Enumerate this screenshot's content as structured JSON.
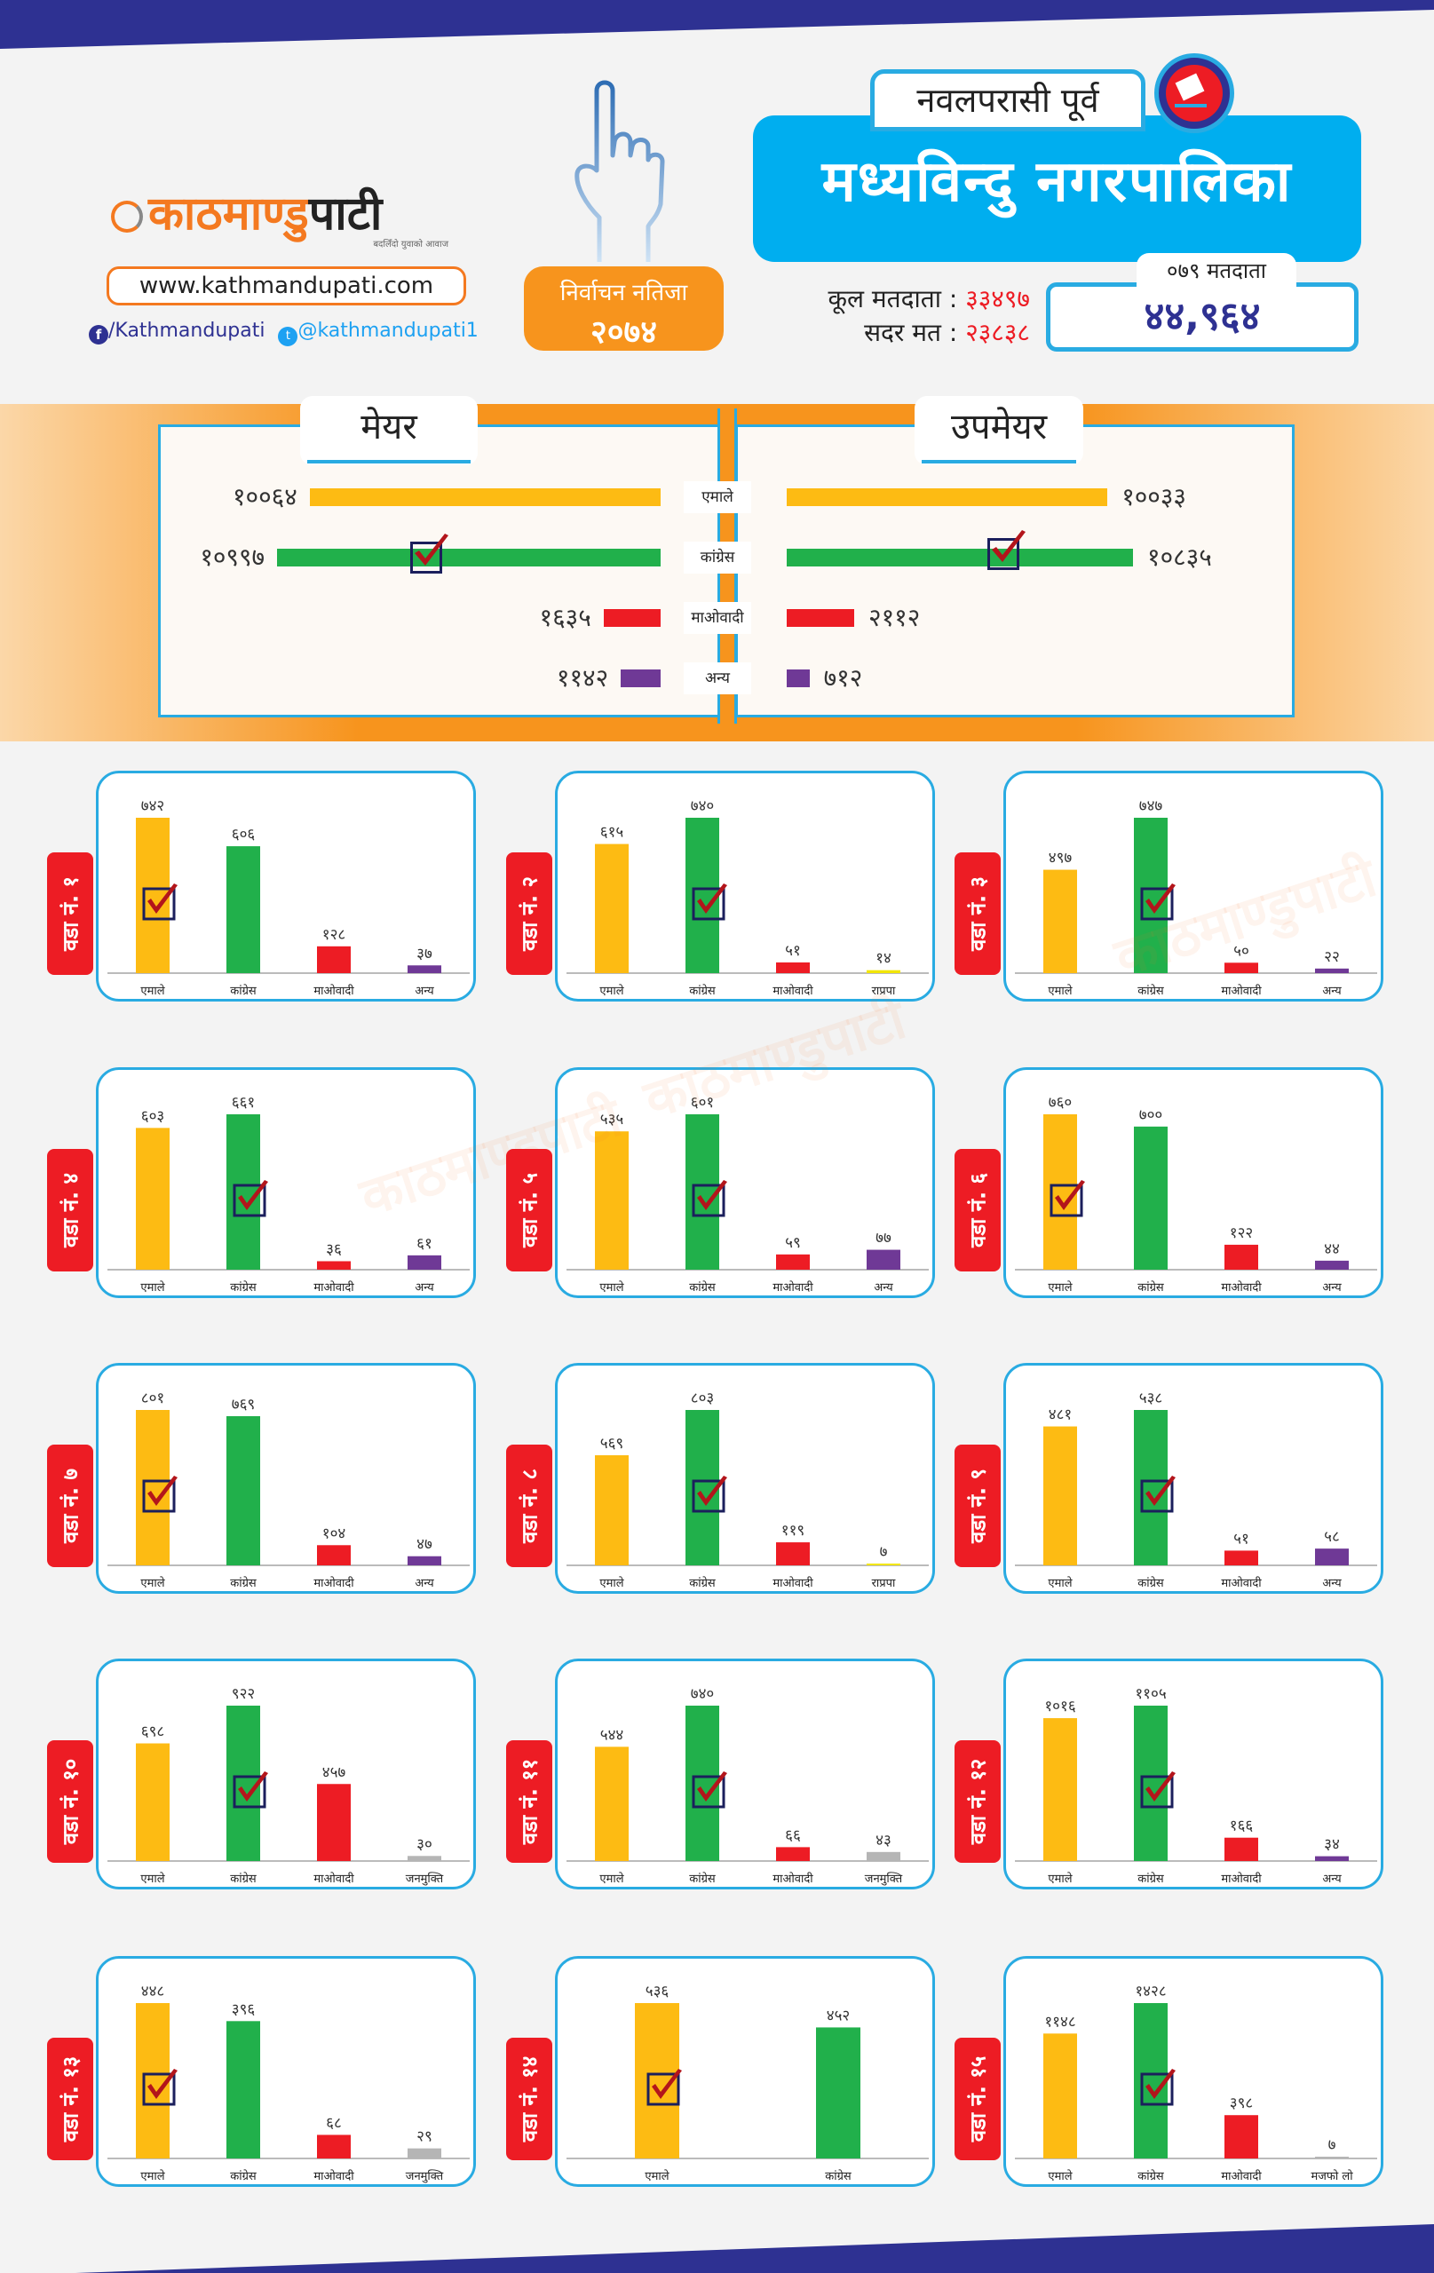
{
  "header": {
    "logo_title_orange": "काठमाण्डु",
    "logo_title_dark": "पाटी",
    "logo_tagline": "बदलिँदो युवाको आवाज",
    "website": "www.kathmandupati.com",
    "facebook": "/Kathmandupati",
    "twitter": "@kathmandupati1",
    "result_label": "निर्वाचन नतिजा",
    "result_year": "२०७४",
    "district": "नवलपरासी पूर्व",
    "municipality": "मध्यविन्दु नगरपालिका",
    "total_voters_label": "कूल मतदाता :",
    "total_voters_value": "३३४९७",
    "valid_votes_label": "सदर मत :",
    "valid_votes_value": "२३८३८",
    "voters_079_label": "०७९ मतदाता",
    "voters_079_value": "४४,९६४"
  },
  "colors": {
    "emale": "#fdbb13",
    "congress": "#21b04b",
    "maoist": "#ed1c24",
    "other": "#6f3996",
    "rpp": "#f2e600",
    "janamukti": "#b5b5b5",
    "accent_blue": "#29abe2",
    "brand_navy": "#2e3192",
    "orange": "#f7941d"
  },
  "chart_data": [
    {
      "type": "bar",
      "title": "मेयर",
      "orientation": "horizontal",
      "categories": [
        "एमाले",
        "कांग्रेस",
        "माओवादी",
        "अन्य"
      ],
      "values": [
        10064,
        10997,
        1635,
        1142
      ],
      "labels": [
        "१००६४",
        "१०९९७",
        "१६३५",
        "११४२"
      ],
      "winner": "कांग्रेस"
    },
    {
      "type": "bar",
      "title": "उपमेयर",
      "orientation": "horizontal",
      "categories": [
        "एमाले",
        "कांग्रेस",
        "माओवादी",
        "अन्य"
      ],
      "values": [
        10033,
        10835,
        2112,
        712
      ],
      "labels": [
        "१००३३",
        "१०८३५",
        "२११२",
        "७१२"
      ],
      "winner": "कांग्रेस"
    },
    {
      "type": "bar",
      "title": "वडा नं. १",
      "categories": [
        "एमाले",
        "कांग्रेस",
        "माओवादी",
        "अन्य"
      ],
      "values": [
        742,
        606,
        128,
        37
      ],
      "labels": [
        "७४२",
        "६०६",
        "१२८",
        "३७"
      ],
      "winner": "एमाले"
    },
    {
      "type": "bar",
      "title": "वडा नं. २",
      "categories": [
        "एमाले",
        "कांग्रेस",
        "माओवादी",
        "राप्रपा"
      ],
      "values": [
        615,
        740,
        51,
        14
      ],
      "labels": [
        "६१५",
        "७४०",
        "५१",
        "१४"
      ],
      "winner": "कांग्रेस"
    },
    {
      "type": "bar",
      "title": "वडा नं. ३",
      "categories": [
        "एमाले",
        "कांग्रेस",
        "माओवादी",
        "अन्य"
      ],
      "values": [
        497,
        747,
        50,
        22
      ],
      "labels": [
        "४९७",
        "७४७",
        "५०",
        "२२"
      ],
      "winner": "कांग्रेस"
    },
    {
      "type": "bar",
      "title": "वडा नं. ४",
      "categories": [
        "एमाले",
        "कांग्रेस",
        "माओवादी",
        "अन्य"
      ],
      "values": [
        603,
        661,
        36,
        61
      ],
      "labels": [
        "६०३",
        "६६१",
        "३६",
        "६१"
      ],
      "winner": "कांग्रेस"
    },
    {
      "type": "bar",
      "title": "वडा नं. ५",
      "categories": [
        "एमाले",
        "कांग्रेस",
        "माओवादी",
        "अन्य"
      ],
      "values": [
        535,
        601,
        59,
        77
      ],
      "labels": [
        "५३५",
        "६०१",
        "५९",
        "७७"
      ],
      "winner": "कांग्रेस"
    },
    {
      "type": "bar",
      "title": "वडा नं. ६",
      "categories": [
        "एमाले",
        "कांग्रेस",
        "माओवादी",
        "अन्य"
      ],
      "values": [
        760,
        700,
        122,
        44
      ],
      "labels": [
        "७६०",
        "७००",
        "१२२",
        "४४"
      ],
      "winner": "एमाले"
    },
    {
      "type": "bar",
      "title": "वडा नं. ७",
      "categories": [
        "एमाले",
        "कांग्रेस",
        "माओवादी",
        "अन्य"
      ],
      "values": [
        801,
        769,
        104,
        47
      ],
      "labels": [
        "८०१",
        "७६९",
        "१०४",
        "४७"
      ],
      "winner": "एमाले"
    },
    {
      "type": "bar",
      "title": "वडा नं. ८",
      "categories": [
        "एमाले",
        "कांग्रेस",
        "माओवादी",
        "राप्रपा"
      ],
      "values": [
        569,
        803,
        119,
        7
      ],
      "labels": [
        "५६९",
        "८०३",
        "११९",
        "७"
      ],
      "winner": "कांग्रेस"
    },
    {
      "type": "bar",
      "title": "वडा नं. ९",
      "categories": [
        "एमाले",
        "कांग्रेस",
        "माओवादी",
        "अन्य"
      ],
      "values": [
        481,
        538,
        51,
        58
      ],
      "labels": [
        "४८१",
        "५३८",
        "५१",
        "५८"
      ],
      "winner": "कांग्रेस"
    },
    {
      "type": "bar",
      "title": "वडा नं. १०",
      "categories": [
        "एमाले",
        "कांग्रेस",
        "माओवादी",
        "जनमुक्ति"
      ],
      "values": [
        698,
        922,
        457,
        30
      ],
      "labels": [
        "६९८",
        "९२२",
        "४५७",
        "३०"
      ],
      "winner": "कांग्रेस"
    },
    {
      "type": "bar",
      "title": "वडा नं. ११",
      "categories": [
        "एमाले",
        "कांग्रेस",
        "माओवादी",
        "जनमुक्ति"
      ],
      "values": [
        544,
        740,
        66,
        43
      ],
      "labels": [
        "५४४",
        "७४०",
        "६६",
        "४३"
      ],
      "winner": "कांग्रेस"
    },
    {
      "type": "bar",
      "title": "वडा नं. १२",
      "categories": [
        "एमाले",
        "कांग्रेस",
        "माओवादी",
        "अन्य"
      ],
      "values": [
        1016,
        1105,
        166,
        34
      ],
      "labels": [
        "१०१६",
        "११०५",
        "१६६",
        "३४"
      ],
      "winner": "कांग्रेस"
    },
    {
      "type": "bar",
      "title": "वडा नं. १३",
      "categories": [
        "एमाले",
        "कांग्रेस",
        "माओवादी",
        "जनमुक्ति"
      ],
      "values": [
        448,
        396,
        68,
        29
      ],
      "labels": [
        "४४८",
        "३९६",
        "६८",
        "२९"
      ],
      "winner": "एमाले"
    },
    {
      "type": "bar",
      "title": "वडा नं. १४",
      "categories": [
        "एमाले",
        "कांग्रेस"
      ],
      "values": [
        536,
        452
      ],
      "labels": [
        "५३६",
        "४५२"
      ],
      "winner": "एमाले"
    },
    {
      "type": "bar",
      "title": "वडा नं. १५",
      "categories": [
        "एमाले",
        "कांग्रेस",
        "माओवादी",
        "मजफो लो"
      ],
      "values": [
        1148,
        1428,
        398,
        7
      ],
      "labels": [
        "११४८",
        "१४२८",
        "३९८",
        "७"
      ],
      "winner": "कांग्रेस"
    }
  ]
}
